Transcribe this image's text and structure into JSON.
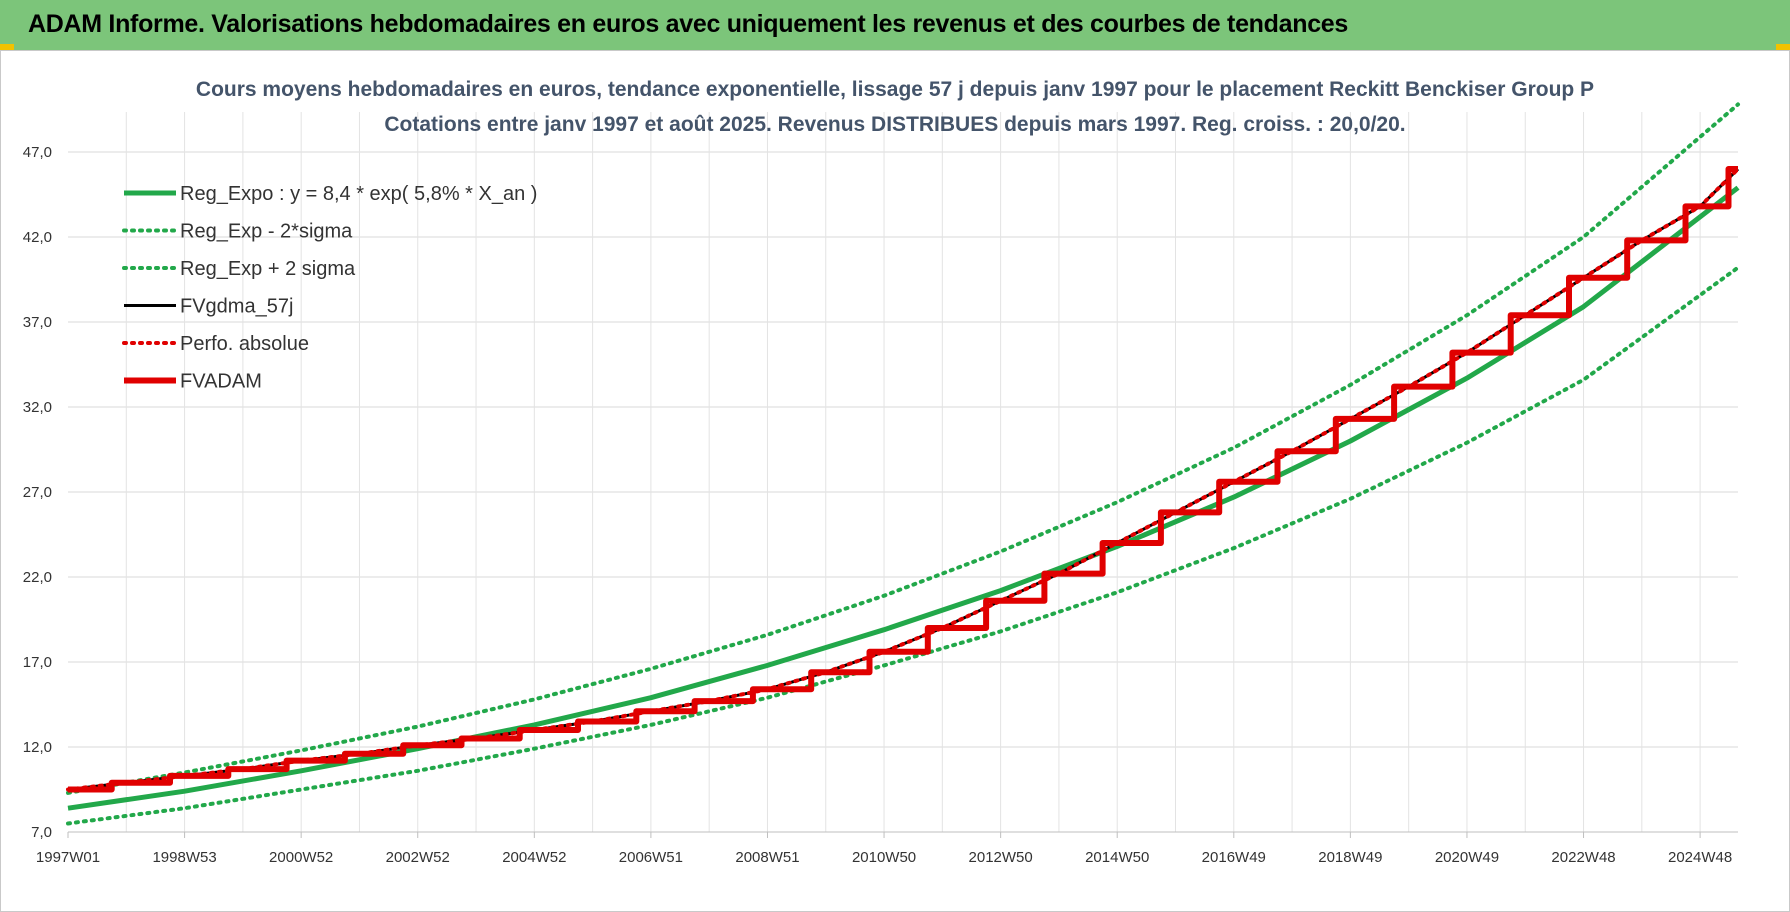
{
  "banner": {
    "title": "ADAM Informe. Valorisations hebdomadaires en euros avec uniquement les revenus et des courbes de tendances"
  },
  "chart_data": {
    "type": "line",
    "title": "Cours moyens hebdomadaires en euros, tendance exponentielle, lissage 57 j depuis janv 1997 pour le placement Reckitt Benckiser Group P",
    "subtitle": "Cotations entre janv 1997 et août 2025.  Revenus DISTRIBUES depuis mars 1997. Reg. croiss. : 20,0/20.",
    "xlabel": "",
    "ylabel": "",
    "x_range": [
      1997.0,
      2025.65
    ],
    "ylim": [
      7.0,
      47.0
    ],
    "y_ticks": [
      "7,0",
      "12,0",
      "17,0",
      "22,0",
      "27,0",
      "32,0",
      "37,0",
      "42,0",
      "47,0"
    ],
    "x_tick_labels": [
      "1997W01",
      "1998W53",
      "2000W52",
      "2002W52",
      "2004W52",
      "2006W51",
      "2008W51",
      "2010W50",
      "2012W50",
      "2014W50",
      "2016W49",
      "2018W49",
      "2020W49",
      "2022W48",
      "2024W48"
    ],
    "grid": true,
    "legend_position": "top-left",
    "series": [
      {
        "name": "Reg_Expo : y = 8,4 * exp( 5,8% *  X_an )",
        "color": "#22a84a",
        "style": "solid",
        "x": [
          1997,
          1999,
          2001,
          2003,
          2005,
          2007,
          2009,
          2011,
          2013,
          2015,
          2017,
          2019,
          2021,
          2023,
          2025.65
        ],
        "y": [
          8.4,
          9.4,
          10.6,
          11.9,
          13.3,
          14.9,
          16.8,
          18.9,
          21.2,
          23.8,
          26.7,
          30.0,
          33.7,
          37.9,
          44.9
        ]
      },
      {
        "name": "Reg_Exp - 2*sigma",
        "color": "#22a84a",
        "style": "dotted",
        "x": [
          1997,
          1999,
          2001,
          2003,
          2005,
          2007,
          2009,
          2011,
          2013,
          2015,
          2017,
          2019,
          2021,
          2023,
          2025.65
        ],
        "y": [
          7.5,
          8.4,
          9.5,
          10.6,
          11.9,
          13.3,
          14.9,
          16.8,
          18.8,
          21.1,
          23.7,
          26.6,
          29.9,
          33.6,
          40.2
        ]
      },
      {
        "name": "Reg_Exp + 2 sigma",
        "color": "#22a84a",
        "style": "dotted",
        "x": [
          1997,
          1999,
          2001,
          2003,
          2005,
          2007,
          2009,
          2011,
          2013,
          2015,
          2017,
          2019,
          2021,
          2023,
          2025.65
        ],
        "y": [
          9.3,
          10.5,
          11.8,
          13.2,
          14.8,
          16.6,
          18.6,
          20.9,
          23.5,
          26.4,
          29.6,
          33.3,
          37.4,
          42.0,
          49.8
        ]
      },
      {
        "name": "FVgdma_57j",
        "color": "#000000",
        "style": "solid",
        "x": [
          1997,
          1998,
          1999,
          2000,
          2001,
          2002,
          2003,
          2004,
          2005,
          2006,
          2007,
          2008,
          2009,
          2010,
          2011,
          2012,
          2013,
          2014,
          2015,
          2016,
          2017,
          2018,
          2019,
          2020,
          2021,
          2022,
          2023,
          2024,
          2025,
          2025.65
        ],
        "y": [
          9.5,
          9.9,
          10.3,
          10.7,
          11.2,
          11.6,
          12.1,
          12.5,
          13.0,
          13.5,
          14.1,
          14.7,
          15.4,
          16.4,
          17.6,
          19.0,
          20.6,
          22.2,
          24.0,
          25.8,
          27.6,
          29.4,
          31.3,
          33.2,
          35.2,
          37.4,
          39.6,
          41.8,
          43.8,
          46.0
        ]
      },
      {
        "name": "Perfo. absolue",
        "color": "#e00000",
        "style": "dotted",
        "x": [
          1997,
          1998,
          1999,
          2000,
          2001,
          2002,
          2003,
          2004,
          2005,
          2006,
          2007,
          2008,
          2009,
          2010,
          2011,
          2012,
          2013,
          2014,
          2015,
          2016,
          2017,
          2018,
          2019,
          2020,
          2021,
          2022,
          2023,
          2024,
          2025,
          2025.65
        ],
        "y": [
          9.5,
          9.9,
          10.3,
          10.7,
          11.2,
          11.6,
          12.1,
          12.5,
          13.0,
          13.5,
          14.1,
          14.7,
          15.4,
          16.4,
          17.6,
          19.0,
          20.6,
          22.2,
          24.0,
          25.8,
          27.6,
          29.4,
          31.3,
          33.2,
          35.2,
          37.4,
          39.6,
          41.8,
          43.8,
          46.0
        ]
      },
      {
        "name": "FVADAM",
        "color": "#e00000",
        "style": "step",
        "x": [
          1997,
          1998,
          1999,
          2000,
          2001,
          2002,
          2003,
          2004,
          2005,
          2006,
          2007,
          2008,
          2009,
          2010,
          2011,
          2012,
          2013,
          2014,
          2015,
          2016,
          2017,
          2018,
          2019,
          2020,
          2021,
          2022,
          2023,
          2024,
          2025,
          2025.65
        ],
        "y": [
          9.5,
          9.9,
          10.3,
          10.7,
          11.2,
          11.6,
          12.1,
          12.5,
          13.0,
          13.5,
          14.1,
          14.7,
          15.4,
          16.4,
          17.6,
          19.0,
          20.6,
          22.2,
          24.0,
          25.8,
          27.6,
          29.4,
          31.3,
          33.2,
          35.2,
          37.4,
          39.6,
          41.8,
          43.8,
          46.0
        ]
      }
    ]
  }
}
